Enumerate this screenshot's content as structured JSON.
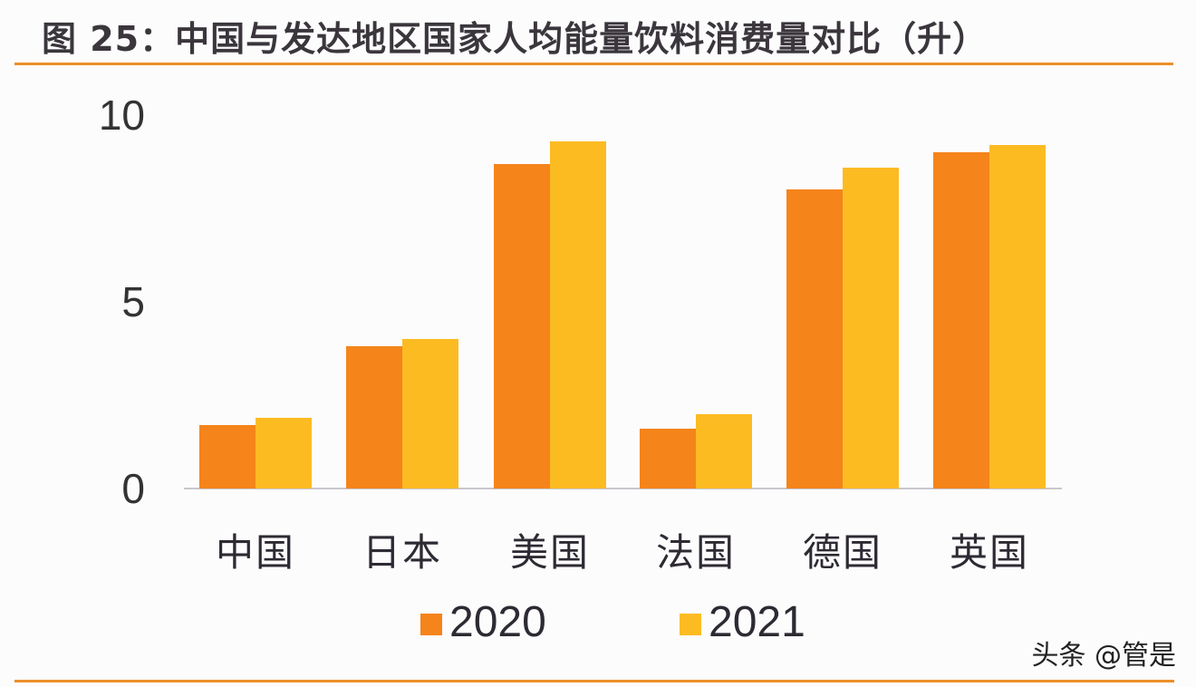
{
  "title": "图 25：中国与发达地区国家人均能量饮料消费量对比（升）",
  "watermark": "头条 @管是",
  "colors": {
    "accent_rule": "#ec8f2a",
    "series_2020": "#f5841b",
    "series_2021": "#fdbb22"
  },
  "chart_data": {
    "type": "bar",
    "title": "中国与发达地区国家人均能量饮料消费量对比（升）",
    "xlabel": "",
    "ylabel": "升",
    "ylim": [
      0,
      10
    ],
    "yticks": [
      "0",
      "5",
      "10"
    ],
    "grid": false,
    "legend_position": "bottom",
    "categories": [
      "中国",
      "日本",
      "美国",
      "法国",
      "德国",
      "英国"
    ],
    "series": [
      {
        "name": "2020",
        "color": "#f5841b",
        "values": [
          1.7,
          3.8,
          8.7,
          1.6,
          8.0,
          9.0
        ]
      },
      {
        "name": "2021",
        "color": "#fdbb22",
        "values": [
          1.9,
          4.0,
          9.3,
          2.0,
          8.6,
          9.2
        ]
      }
    ]
  }
}
